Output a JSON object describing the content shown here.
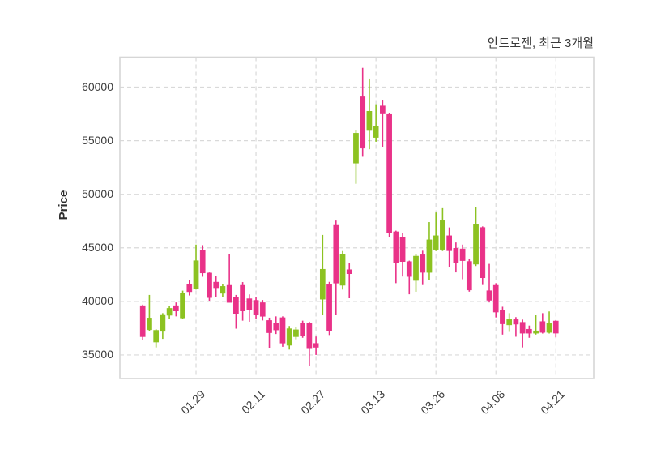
{
  "header": {
    "title": "안트로젠, 최근 3개월"
  },
  "axes": {
    "ylabel": "Price"
  },
  "chart_data": {
    "type": "candlestick",
    "title": "안트로젠, 최근 3개월",
    "ylabel": "Price",
    "grid": "dashed",
    "up_color": "#8cc221",
    "down_color": "#e93288",
    "y_ticks": [
      35000,
      40000,
      45000,
      50000,
      55000,
      60000
    ],
    "ylim": [
      32800,
      62800
    ],
    "x_tick_labels": [
      "01.29",
      "02.11",
      "02.27",
      "03.13",
      "03.26",
      "04.08",
      "04.21"
    ],
    "x_tick_candle_indices": [
      8,
      17,
      26,
      35,
      44,
      53,
      62
    ],
    "candles_format": [
      "open",
      "high",
      "low",
      "close"
    ],
    "candles": [
      [
        39600,
        39700,
        36400,
        36700
      ],
      [
        37350,
        40600,
        37200,
        38450
      ],
      [
        36200,
        37400,
        35700,
        37300
      ],
      [
        37200,
        38900,
        36500,
        38700
      ],
      [
        38700,
        39600,
        38400,
        39350
      ],
      [
        39600,
        39900,
        38600,
        39100
      ],
      [
        38450,
        41000,
        38400,
        40750
      ],
      [
        41600,
        42000,
        40550,
        40900
      ],
      [
        41150,
        45300,
        41100,
        43800
      ],
      [
        44800,
        45250,
        42300,
        42650
      ],
      [
        42650,
        42700,
        40000,
        40350
      ],
      [
        41800,
        42400,
        40400,
        41270
      ],
      [
        40750,
        41650,
        40400,
        41400
      ],
      [
        41500,
        44400,
        39900,
        39900
      ],
      [
        40380,
        40600,
        37450,
        38850
      ],
      [
        41500,
        41800,
        38200,
        39100
      ],
      [
        40250,
        40650,
        38100,
        39250
      ],
      [
        40100,
        40400,
        38350,
        38720
      ],
      [
        39880,
        40130,
        38220,
        38600
      ],
      [
        38220,
        38480,
        35650,
        37070
      ],
      [
        37970,
        38600,
        36950,
        37330
      ],
      [
        38480,
        38600,
        35760,
        36100
      ],
      [
        35900,
        37700,
        35500,
        37450
      ],
      [
        36700,
        37600,
        36460,
        37350
      ],
      [
        38000,
        38200,
        36600,
        36800
      ],
      [
        37980,
        38100,
        33940,
        35580
      ],
      [
        36080,
        36720,
        35000,
        35710
      ],
      [
        40200,
        46200,
        38700,
        43000
      ],
      [
        41570,
        41820,
        36860,
        37240
      ],
      [
        47100,
        47540,
        38700,
        41700
      ],
      [
        41500,
        44700,
        41100,
        44400
      ],
      [
        42960,
        43600,
        40290,
        42580
      ],
      [
        52900,
        55950,
        50980,
        55700
      ],
      [
        59100,
        61800,
        53500,
        54300
      ],
      [
        55950,
        60800,
        54200,
        57750
      ],
      [
        55300,
        58400,
        54900,
        56340
      ],
      [
        58250,
        58750,
        54400,
        57500
      ],
      [
        57450,
        57600,
        46000,
        46400
      ],
      [
        46500,
        46600,
        41700,
        43600
      ],
      [
        46000,
        46390,
        42320,
        43715
      ],
      [
        43715,
        43800,
        40660,
        42320
      ],
      [
        41950,
        44400,
        40900,
        44225
      ],
      [
        44350,
        44730,
        41525,
        42705
      ],
      [
        42700,
        47400,
        42000,
        45750
      ],
      [
        44855,
        48300,
        44700,
        46130
      ],
      [
        44855,
        48700,
        44700,
        47540
      ],
      [
        46130,
        46900,
        43195,
        44725
      ],
      [
        44960,
        45500,
        42705,
        43585
      ],
      [
        44900,
        45300,
        42065,
        43800
      ],
      [
        43730,
        44000,
        40910,
        41060
      ],
      [
        43470,
        48815,
        43300,
        47160
      ],
      [
        46900,
        47000,
        41525,
        42200
      ],
      [
        41000,
        43500,
        39900,
        40100
      ],
      [
        41500,
        41700,
        38500,
        39000
      ],
      [
        39200,
        39500,
        36900,
        37900
      ],
      [
        37800,
        38900,
        37150,
        38300
      ],
      [
        38300,
        38530,
        36700,
        37870
      ],
      [
        38050,
        38300,
        35700,
        37025
      ],
      [
        37400,
        37740,
        36600,
        37025
      ],
      [
        37025,
        38700,
        36900,
        37250
      ],
      [
        38120,
        38900,
        37000,
        37100
      ],
      [
        37100,
        39060,
        37000,
        37940
      ],
      [
        38170,
        38250,
        36640,
        37030
      ]
    ]
  }
}
